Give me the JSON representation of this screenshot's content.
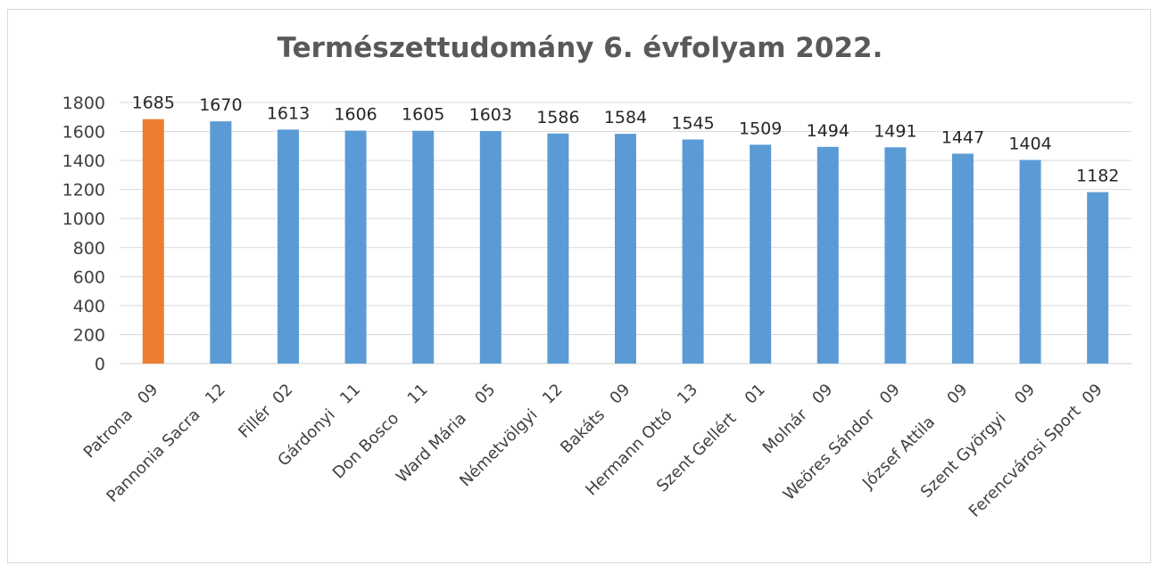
{
  "chart_data": {
    "type": "bar",
    "title": "Természettudomány 6. évfolyam 2022.",
    "categories": [
      "Patrona   09",
      "Pannonia Sacra   12",
      "Fillér  02",
      "Gárdonyi   11",
      "Don Bosco    11",
      "Ward Mária    05",
      "Németvölgyi   12",
      "Bakáts   09",
      "Hermann Ottó   13",
      "Szent Gellért    01",
      "Molnár   09",
      "Weöres Sándor   09",
      "József Attila     09",
      "Szent Györgyi    09",
      "Ferencvárosi Sport  09"
    ],
    "values": [
      1685,
      1670,
      1613,
      1606,
      1605,
      1603,
      1586,
      1584,
      1545,
      1509,
      1494,
      1491,
      1447,
      1404,
      1182
    ],
    "ylim": [
      0,
      1800
    ],
    "yticks": [
      0,
      200,
      400,
      600,
      800,
      1000,
      1200,
      1400,
      1600,
      1800
    ],
    "grid": true,
    "legend": "none",
    "colors": {
      "default_bar": "#5b9bd5",
      "highlight_bar": "#ed7d31",
      "grid": "#d9d9d9",
      "axis": "#d9d9d9"
    },
    "highlight_index": 0
  }
}
